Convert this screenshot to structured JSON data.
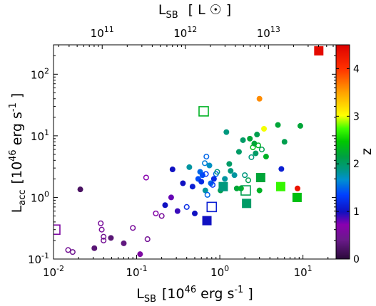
{
  "chart_data": {
    "type": "scatter",
    "x_axis": {
      "label_main": "L",
      "label_sub": "SB",
      "label_rest": "[10",
      "label_exp": "46",
      "label_unit": " erg s",
      "label_unit_exp": "-1",
      "label_close": "]",
      "scale": "log",
      "range": [
        0.01,
        25
      ],
      "ticks": [
        {
          "value": 0.01,
          "base": "10",
          "exp": "-2"
        },
        {
          "value": 0.1,
          "base": "10",
          "exp": "-1"
        },
        {
          "value": 1,
          "base": "10",
          "exp": "0"
        },
        {
          "value": 10,
          "base": "10",
          "exp": "1"
        }
      ]
    },
    "top_axis": {
      "label_main": "L",
      "label_sub": "SB",
      "label_rest": "[ L",
      "label_symbol": "☉",
      "label_close": "]",
      "scale": "log",
      "ticks": [
        {
          "x_value": 0.0385,
          "base": "10",
          "exp": "11"
        },
        {
          "x_value": 0.385,
          "base": "10",
          "exp": "12"
        },
        {
          "x_value": 3.85,
          "base": "10",
          "exp": "13"
        }
      ]
    },
    "y_axis": {
      "label_main": "L",
      "label_sub": "acc",
      "label_rest": "[10",
      "label_exp": "46",
      "label_unit": " erg s",
      "label_unit_exp": "-1",
      "label_close": "]",
      "scale": "log",
      "range": [
        0.1,
        300
      ],
      "ticks": [
        {
          "value": 0.1,
          "base": "10",
          "exp": "-1"
        },
        {
          "value": 1,
          "base": "10",
          "exp": "0"
        },
        {
          "value": 10,
          "base": "10",
          "exp": "1"
        },
        {
          "value": 100,
          "base": "10",
          "exp": "2"
        }
      ]
    },
    "colorbar": {
      "label": "z",
      "range": [
        0,
        4.5
      ],
      "ticks": [
        "0",
        "1",
        "2",
        "3",
        "4"
      ]
    },
    "points": [
      {
        "x": 0.0105,
        "y": 0.3,
        "z": 0.6,
        "marker": "square",
        "filled": false
      },
      {
        "x": 0.015,
        "y": 0.14,
        "z": 0.5,
        "marker": "circle",
        "filled": false
      },
      {
        "x": 0.017,
        "y": 0.13,
        "z": 0.45,
        "marker": "circle",
        "filled": false
      },
      {
        "x": 0.021,
        "y": 1.35,
        "z": 0.2,
        "marker": "circle",
        "filled": true
      },
      {
        "x": 0.031,
        "y": 0.15,
        "z": 0.3,
        "marker": "circle",
        "filled": true
      },
      {
        "x": 0.037,
        "y": 0.38,
        "z": 0.55,
        "marker": "circle",
        "filled": false
      },
      {
        "x": 0.038,
        "y": 0.3,
        "z": 0.55,
        "marker": "circle",
        "filled": false
      },
      {
        "x": 0.04,
        "y": 0.23,
        "z": 0.45,
        "marker": "circle",
        "filled": false
      },
      {
        "x": 0.04,
        "y": 0.2,
        "z": 0.5,
        "marker": "circle",
        "filled": false
      },
      {
        "x": 0.049,
        "y": 0.22,
        "z": 0.3,
        "marker": "circle",
        "filled": true
      },
      {
        "x": 0.07,
        "y": 0.18,
        "z": 0.35,
        "marker": "circle",
        "filled": true
      },
      {
        "x": 0.09,
        "y": 0.32,
        "z": 0.55,
        "marker": "circle",
        "filled": false
      },
      {
        "x": 0.11,
        "y": 0.12,
        "z": 0.6,
        "marker": "circle",
        "filled": true
      },
      {
        "x": 0.13,
        "y": 2.1,
        "z": 0.7,
        "marker": "circle",
        "filled": false
      },
      {
        "x": 0.135,
        "y": 0.21,
        "z": 0.5,
        "marker": "circle",
        "filled": false
      },
      {
        "x": 0.17,
        "y": 0.55,
        "z": 0.65,
        "marker": "circle",
        "filled": false
      },
      {
        "x": 0.2,
        "y": 0.5,
        "z": 0.55,
        "marker": "circle",
        "filled": false
      },
      {
        "x": 0.22,
        "y": 0.75,
        "z": 1.0,
        "marker": "circle",
        "filled": true
      },
      {
        "x": 0.26,
        "y": 1.0,
        "z": 0.8,
        "marker": "circle",
        "filled": true
      },
      {
        "x": 0.27,
        "y": 2.85,
        "z": 1.0,
        "marker": "circle",
        "filled": true
      },
      {
        "x": 0.31,
        "y": 0.6,
        "z": 0.9,
        "marker": "circle",
        "filled": true
      },
      {
        "x": 0.36,
        "y": 1.7,
        "z": 1.0,
        "marker": "circle",
        "filled": true
      },
      {
        "x": 0.4,
        "y": 0.7,
        "z": 1.2,
        "marker": "circle",
        "filled": false
      },
      {
        "x": 0.43,
        "y": 3.1,
        "z": 1.8,
        "marker": "circle",
        "filled": true
      },
      {
        "x": 0.47,
        "y": 1.5,
        "z": 1.1,
        "marker": "circle",
        "filled": true
      },
      {
        "x": 0.5,
        "y": 0.55,
        "z": 1.0,
        "marker": "circle",
        "filled": true
      },
      {
        "x": 0.55,
        "y": 2.0,
        "z": 1.4,
        "marker": "circle",
        "filled": true
      },
      {
        "x": 0.58,
        "y": 2.6,
        "z": 1.5,
        "marker": "circle",
        "filled": true
      },
      {
        "x": 0.6,
        "y": 1.8,
        "z": 1.2,
        "marker": "circle",
        "filled": true
      },
      {
        "x": 0.62,
        "y": 2.3,
        "z": 1.4,
        "marker": "circle",
        "filled": true
      },
      {
        "x": 0.64,
        "y": 25,
        "z": 2.3,
        "marker": "square",
        "filled": false
      },
      {
        "x": 0.66,
        "y": 3.6,
        "z": 1.6,
        "marker": "circle",
        "filled": false
      },
      {
        "x": 0.67,
        "y": 1.3,
        "z": 1.8,
        "marker": "circle",
        "filled": true
      },
      {
        "x": 0.68,
        "y": 2.4,
        "z": 1.3,
        "marker": "circle",
        "filled": false
      },
      {
        "x": 0.69,
        "y": 4.6,
        "z": 1.5,
        "marker": "circle",
        "filled": false
      },
      {
        "x": 0.7,
        "y": 0.42,
        "z": 1.0,
        "marker": "square",
        "filled": true
      },
      {
        "x": 0.71,
        "y": 1.1,
        "z": 1.5,
        "marker": "circle",
        "filled": false
      },
      {
        "x": 0.75,
        "y": 3.3,
        "z": 1.7,
        "marker": "circle",
        "filled": true
      },
      {
        "x": 0.78,
        "y": 1.7,
        "z": 1.5,
        "marker": "circle",
        "filled": true
      },
      {
        "x": 0.8,
        "y": 0.7,
        "z": 1.1,
        "marker": "square",
        "filled": false
      },
      {
        "x": 0.82,
        "y": 1.6,
        "z": 1.3,
        "marker": "circle",
        "filled": false
      },
      {
        "x": 0.85,
        "y": 2.0,
        "z": 1.2,
        "marker": "circle",
        "filled": true
      },
      {
        "x": 0.9,
        "y": 2.4,
        "z": 1.5,
        "marker": "circle",
        "filled": false
      },
      {
        "x": 0.93,
        "y": 2.6,
        "z": 1.9,
        "marker": "circle",
        "filled": false
      },
      {
        "x": 1.02,
        "y": 1.3,
        "z": 2.1,
        "marker": "circle",
        "filled": true
      },
      {
        "x": 1.1,
        "y": 1.5,
        "z": 1.9,
        "marker": "square",
        "filled": true
      },
      {
        "x": 1.15,
        "y": 2.0,
        "z": 1.8,
        "marker": "circle",
        "filled": true
      },
      {
        "x": 1.2,
        "y": 11.5,
        "z": 1.9,
        "marker": "circle",
        "filled": true
      },
      {
        "x": 1.3,
        "y": 3.5,
        "z": 2.0,
        "marker": "circle",
        "filled": true
      },
      {
        "x": 1.35,
        "y": 2.7,
        "z": 1.9,
        "marker": "circle",
        "filled": true
      },
      {
        "x": 1.5,
        "y": 2.3,
        "z": 1.8,
        "marker": "circle",
        "filled": true
      },
      {
        "x": 1.6,
        "y": 1.4,
        "z": 2.2,
        "marker": "circle",
        "filled": true
      },
      {
        "x": 1.7,
        "y": 5.5,
        "z": 2.0,
        "marker": "circle",
        "filled": true
      },
      {
        "x": 1.8,
        "y": 1.4,
        "z": 2.3,
        "marker": "circle",
        "filled": true
      },
      {
        "x": 1.9,
        "y": 8.5,
        "z": 2.0,
        "marker": "circle",
        "filled": true
      },
      {
        "x": 2.0,
        "y": 2.3,
        "z": 1.9,
        "marker": "circle",
        "filled": false
      },
      {
        "x": 2.05,
        "y": 1.3,
        "z": 2.1,
        "marker": "square",
        "filled": false
      },
      {
        "x": 2.1,
        "y": 0.8,
        "z": 2.0,
        "marker": "square",
        "filled": true
      },
      {
        "x": 2.2,
        "y": 1.9,
        "z": 2.1,
        "marker": "circle",
        "filled": false
      },
      {
        "x": 2.3,
        "y": 9.0,
        "z": 2.2,
        "marker": "circle",
        "filled": true
      },
      {
        "x": 2.4,
        "y": 4.5,
        "z": 1.9,
        "marker": "circle",
        "filled": false
      },
      {
        "x": 2.5,
        "y": 6.5,
        "z": 2.4,
        "marker": "circle",
        "filled": false
      },
      {
        "x": 2.6,
        "y": 7.5,
        "z": 2.2,
        "marker": "circle",
        "filled": true
      },
      {
        "x": 2.7,
        "y": 5.2,
        "z": 2.0,
        "marker": "circle",
        "filled": true
      },
      {
        "x": 2.8,
        "y": 10.5,
        "z": 2.1,
        "marker": "circle",
        "filled": true
      },
      {
        "x": 2.9,
        "y": 7.0,
        "z": 2.3,
        "marker": "circle",
        "filled": false
      },
      {
        "x": 3.0,
        "y": 1.3,
        "z": 2.3,
        "marker": "circle",
        "filled": true
      },
      {
        "x": 3.0,
        "y": 40,
        "z": 3.6,
        "marker": "circle",
        "filled": true
      },
      {
        "x": 3.1,
        "y": 2.1,
        "z": 2.2,
        "marker": "square",
        "filled": true
      },
      {
        "x": 3.2,
        "y": 6.0,
        "z": 2.1,
        "marker": "circle",
        "filled": false
      },
      {
        "x": 3.4,
        "y": 13,
        "z": 3.0,
        "marker": "circle",
        "filled": true
      },
      {
        "x": 3.6,
        "y": 4.6,
        "z": 2.3,
        "marker": "circle",
        "filled": true
      },
      {
        "x": 5.0,
        "y": 15,
        "z": 2.2,
        "marker": "circle",
        "filled": true
      },
      {
        "x": 5.4,
        "y": 1.5,
        "z": 2.7,
        "marker": "square",
        "filled": true
      },
      {
        "x": 5.5,
        "y": 2.9,
        "z": 1.1,
        "marker": "circle",
        "filled": true
      },
      {
        "x": 6.0,
        "y": 8.0,
        "z": 2.1,
        "marker": "circle",
        "filled": true
      },
      {
        "x": 8.5,
        "y": 1.0,
        "z": 2.4,
        "marker": "square",
        "filled": true
      },
      {
        "x": 8.6,
        "y": 1.4,
        "z": 4.3,
        "marker": "circle",
        "filled": true
      },
      {
        "x": 9.3,
        "y": 14.5,
        "z": 2.2,
        "marker": "circle",
        "filled": true
      },
      {
        "x": 15.5,
        "y": 240,
        "z": 4.4,
        "marker": "square",
        "filled": true
      }
    ]
  }
}
